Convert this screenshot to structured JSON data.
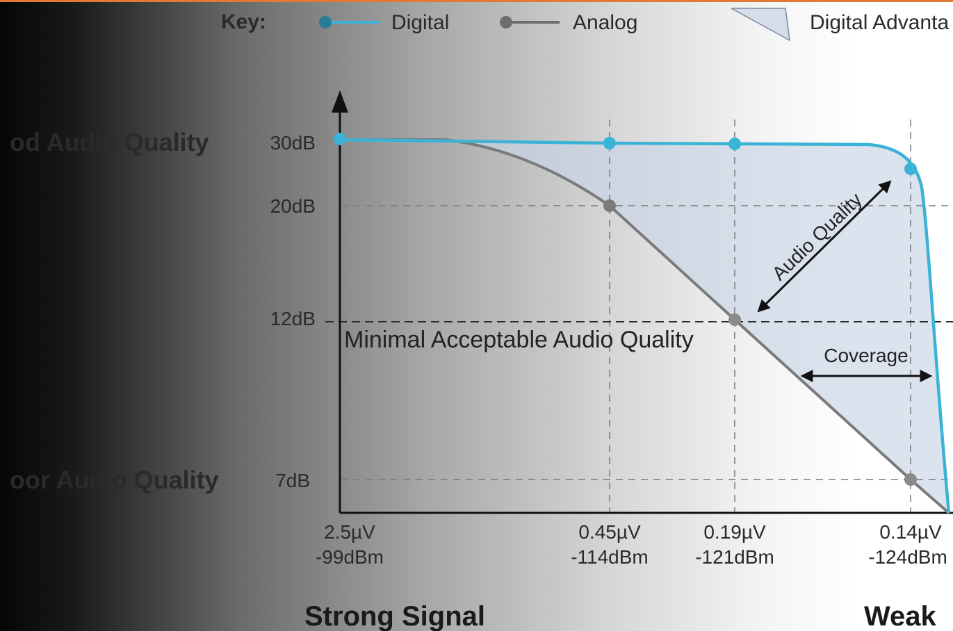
{
  "legend": {
    "key_label": "Key:",
    "digital_label": "Digital",
    "analog_label": "Analog",
    "advantage_label": "Digital Advanta"
  },
  "side_labels": {
    "good": "od Audio Quality",
    "poor": "oor Audio Quality"
  },
  "bottom_labels": {
    "strong": "Strong Signal",
    "weak": "Weak"
  },
  "annotations": {
    "min_quality": "Minimal Acceptable Audio Quality",
    "audio_quality": "Audio Quality",
    "coverage": "Coverage"
  },
  "colors": {
    "digital": "#3bb3d6",
    "analog": "#7a7a7a",
    "advantage_fill": "#c8d4e6",
    "accent_line": "#e07a3a"
  },
  "chart_data": {
    "type": "line",
    "y_ticks": [
      "30dB",
      "20dB",
      "12dB",
      "7dB"
    ],
    "x_ticks": [
      {
        "uv": "2.5µV",
        "dbm": "-99dBm"
      },
      {
        "uv": "0.45µV",
        "dbm": "-114dBm"
      },
      {
        "uv": "0.19µV",
        "dbm": "-121dBm"
      },
      {
        "uv": "0.14µV",
        "dbm": "-124dBm"
      }
    ],
    "series": [
      {
        "name": "Digital",
        "points": [
          {
            "x": "-99dBm",
            "y": 30
          },
          {
            "x": "-114dBm",
            "y": 30
          },
          {
            "x": "-121dBm",
            "y": 30
          },
          {
            "x": "-124dBm",
            "y": 26
          }
        ]
      },
      {
        "name": "Analog",
        "points": [
          {
            "x": "-114dBm",
            "y": 20
          },
          {
            "x": "-121dBm",
            "y": 12
          },
          {
            "x": "-124dBm",
            "y": 7
          }
        ]
      }
    ],
    "threshold_db": 12,
    "fill_label": "Digital Advanta"
  }
}
